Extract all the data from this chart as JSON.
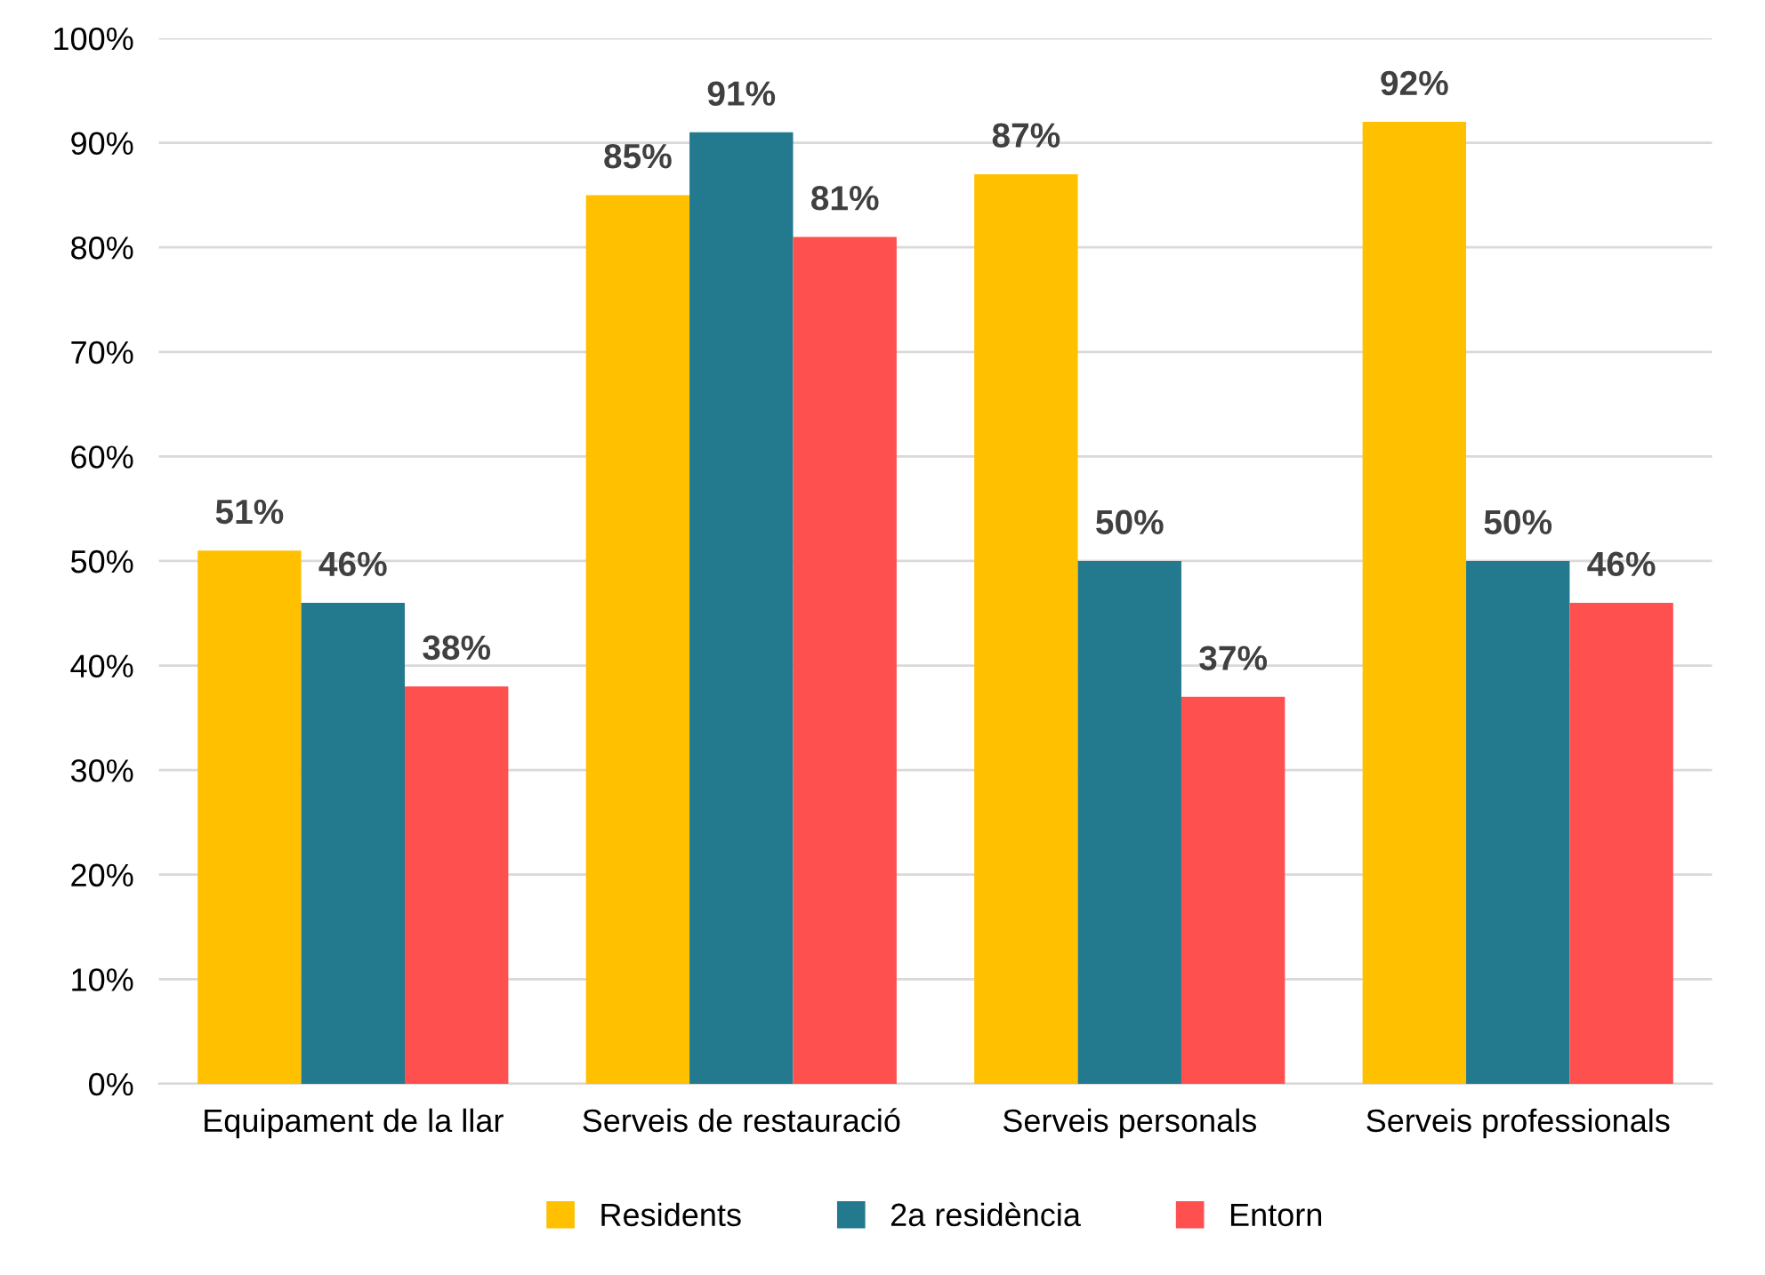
{
  "chart_data": {
    "type": "bar",
    "categories": [
      "Equipament de la llar",
      "Serveis de restauració",
      "Serveis personals",
      "Serveis professionals"
    ],
    "series": [
      {
        "name": "Residents",
        "color": "#ffc000",
        "values": [
          51,
          85,
          87,
          92
        ],
        "value_labels": [
          "51%",
          "85%",
          "87%",
          "92%"
        ]
      },
      {
        "name": "2a residència",
        "color": "#237a8e",
        "values": [
          46,
          91,
          50,
          50
        ],
        "value_labels": [
          "46%",
          "91%",
          "50%",
          "50%"
        ]
      },
      {
        "name": "Entorn",
        "color": "#ff5050",
        "values": [
          38,
          81,
          37,
          46
        ],
        "value_labels": [
          "38%",
          "81%",
          "37%",
          "46%"
        ]
      }
    ],
    "ylim": [
      0,
      100
    ],
    "yticks": [
      {
        "value": 0,
        "label": "0%"
      },
      {
        "value": 10,
        "label": "10%"
      },
      {
        "value": 20,
        "label": "20%"
      },
      {
        "value": 30,
        "label": "30%"
      },
      {
        "value": 40,
        "label": "40%"
      },
      {
        "value": 50,
        "label": "50%"
      },
      {
        "value": 60,
        "label": "60%"
      },
      {
        "value": 70,
        "label": "70%"
      },
      {
        "value": 80,
        "label": "80%"
      },
      {
        "value": 90,
        "label": "90%"
      },
      {
        "value": 100,
        "label": "100%"
      }
    ],
    "grid": "y",
    "legend": "bottom"
  }
}
